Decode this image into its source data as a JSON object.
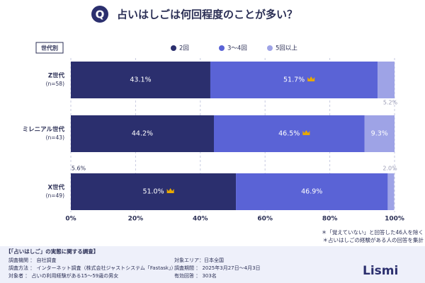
{
  "chart_data": {
    "type": "stacked_barh",
    "icon": "Q",
    "title": "占いはしごは何回程度のことが多い？",
    "group_label": "世代別",
    "categories": [
      "Z世代",
      "ミレニアル世代",
      "X世代"
    ],
    "sublabels": [
      "(n=58)",
      "(n=43)",
      "(n=49)"
    ],
    "series": [
      {
        "name": "2回",
        "color": "#2b2f6e",
        "values": [
          43.1,
          44.2,
          51.0
        ],
        "value_labels": [
          "43.1%",
          "44.2%",
          "51.0%"
        ]
      },
      {
        "name": "3〜4回",
        "color": "#5a63d6",
        "values": [
          51.7,
          46.5,
          46.9
        ],
        "value_labels": [
          "51.7%",
          "46.5%",
          "46.9%"
        ]
      },
      {
        "name": "5回以上",
        "color": "#9ea3e6",
        "values": [
          5.2,
          9.3,
          2.0
        ],
        "value_labels": [
          "5.2%",
          "9.3%",
          "2.0%"
        ]
      }
    ],
    "annotations": [
      "5.6%"
    ],
    "xlim": [
      0,
      100
    ],
    "xticks": [
      {
        "value": 0,
        "label": "0%"
      },
      {
        "value": 20,
        "label": "20%"
      },
      {
        "value": 40,
        "label": "40%"
      },
      {
        "value": 60,
        "label": "60%"
      },
      {
        "value": 80,
        "label": "80%"
      },
      {
        "value": 100,
        "label": "100%"
      }
    ],
    "grid": true,
    "legend": "top",
    "notes": [
      "＊「覚えていない」と回答した46人を除く",
      "＊占いはしごの経験がある人の回答を集計"
    ],
    "survey": {
      "title": "【「占いはしご」の実態に関する調査】",
      "items": [
        "調査機関 ： 自社調査",
        "調査方法 ： インターネット調査（株式会社ジャストシステム「Fastask」）",
        "対象者 ： 占いの利用経験がある15〜59歳の男女",
        "対象エリア：日本全国",
        "調査期間 ： 2025年3月27日〜4月3日",
        "有効回答 ： 303名"
      ]
    },
    "brand": "Lismi"
  }
}
